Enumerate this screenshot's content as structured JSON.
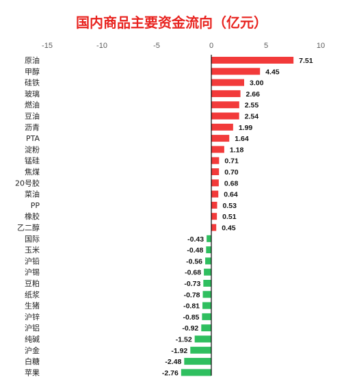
{
  "chart_data": {
    "type": "bar",
    "orientation": "horizontal",
    "title": "国内商品主要资金流向（亿元）",
    "xlabel": "",
    "ylabel": "",
    "xlim": [
      -15,
      10
    ],
    "xticks": [
      -15,
      -10,
      -5,
      0,
      5,
      10
    ],
    "xtick_labels": [
      "-15",
      "-10",
      "-5",
      "0",
      "5",
      "10"
    ],
    "x_axis_position": "top",
    "grid": false,
    "legend": "none",
    "colors": {
      "positive": "#f23a3a",
      "negative": "#2fbf5f",
      "title": "#e8231f"
    },
    "categories": [
      "原油",
      "甲醇",
      "硅铁",
      "玻璃",
      "燃油",
      "豆油",
      "沥青",
      "PTA",
      "淀粉",
      "锰硅",
      "焦煤",
      "20号胶",
      "菜油",
      "PP",
      "橡胶",
      "乙二醇",
      "国际",
      "玉米",
      "沪铅",
      "沪锡",
      "豆粕",
      "纸浆",
      "生猪",
      "沪锌",
      "沪铝",
      "纯碱",
      "沪金",
      "白糖",
      "苹果"
    ],
    "values": [
      7.51,
      4.45,
      3.0,
      2.66,
      2.55,
      2.54,
      1.99,
      1.64,
      1.18,
      0.71,
      0.7,
      0.68,
      0.64,
      0.53,
      0.51,
      0.45,
      -0.43,
      -0.48,
      -0.56,
      -0.68,
      -0.73,
      -0.78,
      -0.81,
      -0.85,
      -0.92,
      -1.52,
      -1.92,
      -2.48,
      -2.76
    ],
    "value_labels": [
      "7.51",
      "4.45",
      "3.00",
      "2.66",
      "2.55",
      "2.54",
      "1.99",
      "1.64",
      "1.18",
      "0.71",
      "0.70",
      "0.68",
      "0.64",
      "0.53",
      "0.51",
      "0.45",
      "-0.43",
      "-0.48",
      "-0.56",
      "-0.68",
      "-0.73",
      "-0.78",
      "-0.81",
      "-0.85",
      "-0.92",
      "-1.52",
      "-1.92",
      "-2.48",
      "-2.76"
    ]
  }
}
